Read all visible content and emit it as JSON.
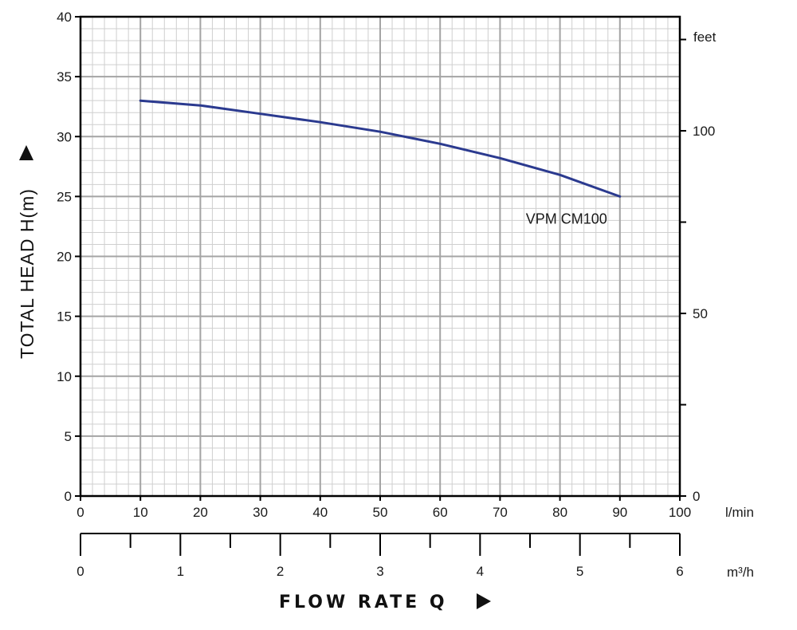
{
  "chart_data": {
    "type": "line",
    "ylabel": "TOTAL HEAD H(m)",
    "xlabel": "FLOW RATE Q",
    "x_unit": "l/min",
    "x2_unit": "m³/h",
    "y2_unit": "feet",
    "xlim": [
      0,
      100
    ],
    "ylim": [
      0,
      40
    ],
    "x_ticks": [
      0,
      10,
      20,
      30,
      40,
      50,
      60,
      70,
      80,
      90,
      100
    ],
    "y_ticks": [
      0,
      5,
      10,
      15,
      20,
      25,
      30,
      35,
      40
    ],
    "x2_ticks": [
      0,
      1,
      2,
      3,
      4,
      5,
      6
    ],
    "y2_ticks": [
      0,
      50,
      100
    ],
    "grid": true,
    "series": [
      {
        "name": "VPM CM100",
        "color": "#2b3a8f",
        "x": [
          10,
          20,
          30,
          40,
          50,
          60,
          70,
          80,
          90
        ],
        "y": [
          33.0,
          32.6,
          31.9,
          31.2,
          30.4,
          29.4,
          28.2,
          26.8,
          25.0
        ]
      }
    ]
  }
}
